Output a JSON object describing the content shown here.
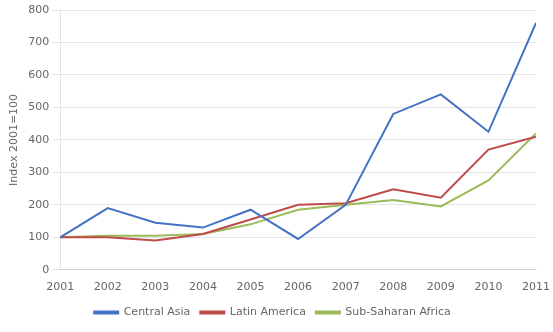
{
  "chart_data": {
    "type": "line",
    "x": [
      2001,
      2002,
      2003,
      2004,
      2005,
      2006,
      2007,
      2008,
      2009,
      2010,
      2011
    ],
    "series": [
      {
        "name": "Central Asia",
        "color": "#4472C4",
        "values": [
          100,
          190,
          145,
          130,
          185,
          95,
          200,
          480,
          540,
          425,
          760
        ]
      },
      {
        "name": "Latin America",
        "color": "#BE4B48",
        "values": [
          100,
          100,
          90,
          110,
          155,
          200,
          205,
          248,
          222,
          370,
          410
        ]
      },
      {
        "name": "Sub-Saharan Africa",
        "color": "#9BBB59",
        "values": [
          100,
          105,
          105,
          110,
          140,
          185,
          200,
          215,
          195,
          275,
          420
        ]
      }
    ],
    "ylabel": "Index 2001=100",
    "xlim": [
      2001,
      2011
    ],
    "xticks": [
      2001,
      2002,
      2003,
      2004,
      2005,
      2006,
      2007,
      2008,
      2009,
      2010,
      2011
    ],
    "ylim": [
      0,
      800
    ],
    "yticks": [
      0,
      100,
      200,
      300,
      400,
      500,
      600,
      700,
      800
    ],
    "grid": true,
    "legend": "bottom"
  }
}
